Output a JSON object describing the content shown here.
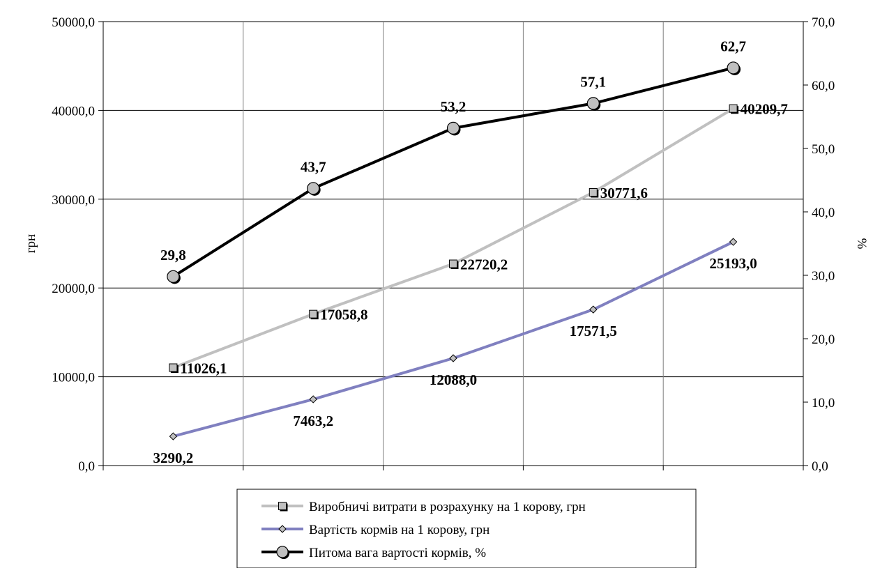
{
  "chart_data": {
    "type": "line",
    "categories": [
      "",
      "",
      "",
      "",
      ""
    ],
    "ylabel": "грн",
    "y2label": "%",
    "ylim": [
      0,
      50000
    ],
    "y2lim": [
      0,
      70
    ],
    "yticks": [
      "0,0",
      "10000,0",
      "20000,0",
      "30000,0",
      "40000,0",
      "50000,0"
    ],
    "y2ticks": [
      "0,0",
      "10,0",
      "20,0",
      "30,0",
      "40,0",
      "50,0",
      "60,0",
      "70,0"
    ],
    "grid": true,
    "legend_position": "bottom",
    "series": [
      {
        "name": "Виробничі витрати в розрахунку на 1 корову, грн",
        "axis": "left",
        "marker": "square",
        "color": "#c0c0c0",
        "values": [
          11026.1,
          17058.8,
          22720.2,
          30771.6,
          40209.7
        ],
        "labels": [
          "11026,1",
          "17058,8",
          "22720,2",
          "30771,6",
          "40209,7"
        ]
      },
      {
        "name": "Вартість кормів на 1 корову, грн",
        "axis": "left",
        "marker": "diamond",
        "color": "#8080c0",
        "values": [
          3290.2,
          7463.2,
          12088.0,
          17571.5,
          25193.0
        ],
        "labels": [
          "3290,2",
          "7463,2",
          "12088,0",
          "17571,5",
          "25193,0"
        ]
      },
      {
        "name": "Питома вага вартості кормів, %",
        "axis": "right",
        "marker": "circle",
        "color": "#000000",
        "values": [
          29.8,
          43.7,
          53.2,
          57.1,
          62.7
        ],
        "labels": [
          "29,8",
          "43,7",
          "53,2",
          "57,1",
          "62,7"
        ]
      }
    ]
  }
}
